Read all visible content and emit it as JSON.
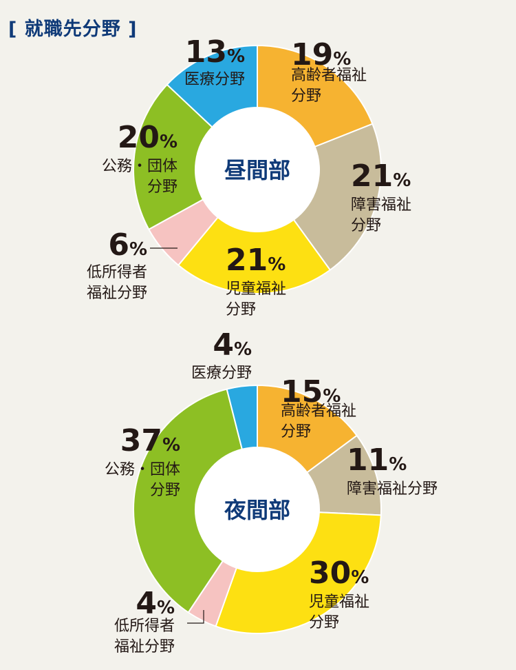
{
  "title": "[ 就職先分野 ]",
  "colors": {
    "background": "#f3f2ec",
    "center_text": "#0f3a78",
    "高齢者福祉分野": "#f6b331",
    "障害福祉分野": "#c8bc9b",
    "児童福祉分野": "#fde012",
    "低所得者福祉分野": "#f6c3c1",
    "公務・団体分野": "#8dbf24",
    "医療分野": "#29a8e0"
  },
  "chart_data": [
    {
      "type": "pie",
      "center_label": "昼間部",
      "slices": [
        {
          "category": "高齢者福祉分野",
          "value": 19,
          "percent_text": "19",
          "label_lines": [
            "高齢者福祉",
            "分野"
          ]
        },
        {
          "category": "障害福祉分野",
          "value": 21,
          "percent_text": "21",
          "label_lines": [
            "障害福祉",
            "分野"
          ]
        },
        {
          "category": "児童福祉分野",
          "value": 21,
          "percent_text": "21",
          "label_lines": [
            "児童福祉",
            "分野"
          ]
        },
        {
          "category": "低所得者福祉分野",
          "value": 6,
          "percent_text": "6",
          "label_lines": [
            "低所得者",
            "福祉分野"
          ]
        },
        {
          "category": "公務・団体分野",
          "value": 20,
          "percent_text": "20",
          "label_lines": [
            "公務・団体",
            "分野"
          ]
        },
        {
          "category": "医療分野",
          "value": 13,
          "percent_text": "13",
          "label_lines": [
            "医療分野"
          ]
        }
      ],
      "unit": "%"
    },
    {
      "type": "pie",
      "center_label": "夜間部",
      "slices": [
        {
          "category": "高齢者福祉分野",
          "value": 15,
          "percent_text": "15",
          "label_lines": [
            "高齢者福祉",
            "分野"
          ]
        },
        {
          "category": "障害福祉分野",
          "value": 11,
          "percent_text": "11",
          "label_lines": [
            "障害福祉分野"
          ]
        },
        {
          "category": "児童福祉分野",
          "value": 30,
          "percent_text": "30",
          "label_lines": [
            "児童福祉",
            "分野"
          ]
        },
        {
          "category": "低所得者福祉分野",
          "value": 4,
          "percent_text": "4",
          "label_lines": [
            "低所得者",
            "福祉分野"
          ]
        },
        {
          "category": "公務・団体分野",
          "value": 37,
          "percent_text": "37",
          "label_lines": [
            "公務・団体",
            "分野"
          ]
        },
        {
          "category": "医療分野",
          "value": 4,
          "percent_text": "4",
          "label_lines": [
            "医療分野"
          ]
        }
      ],
      "unit": "%"
    }
  ]
}
